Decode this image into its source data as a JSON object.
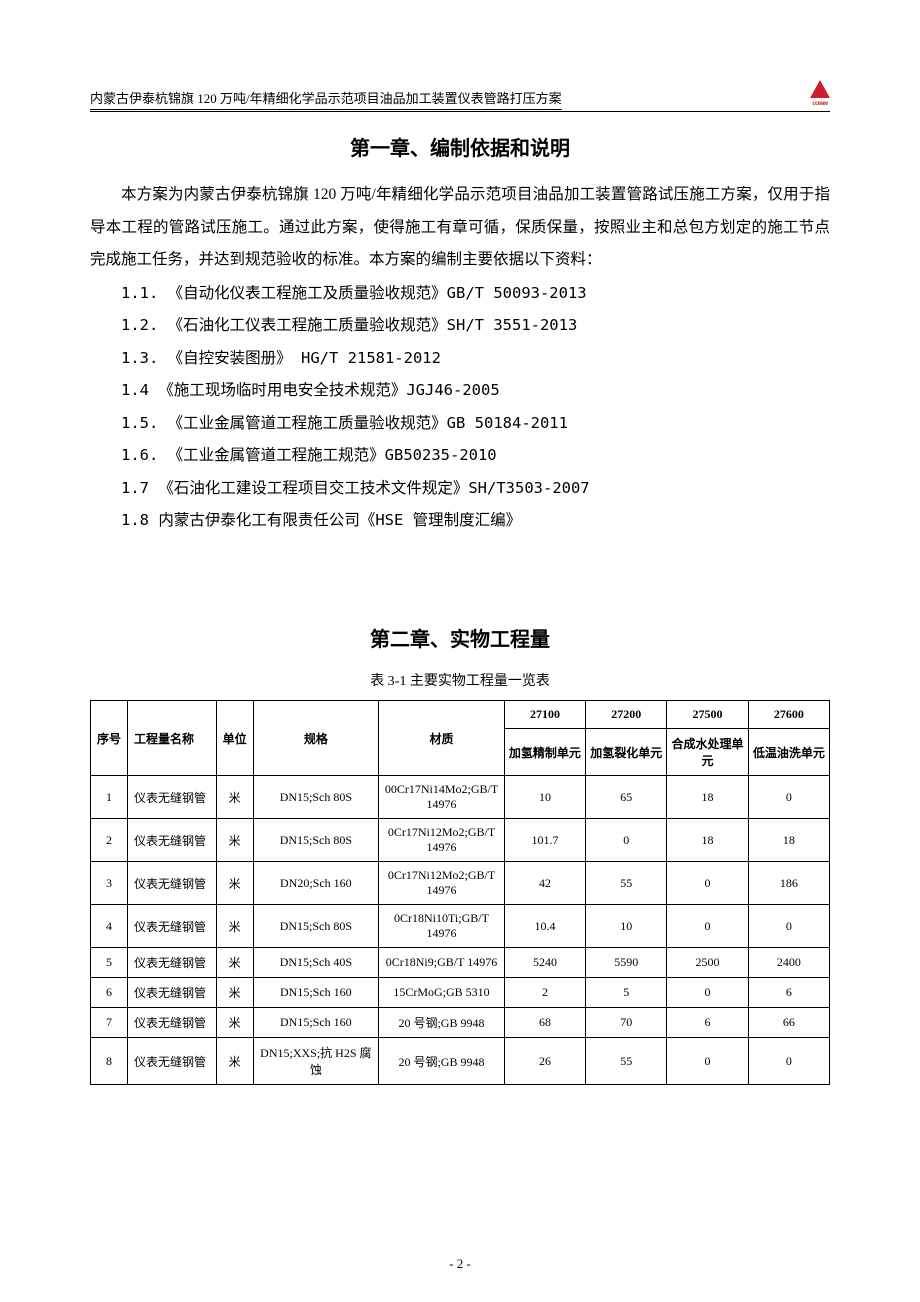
{
  "header": {
    "title": "内蒙古伊泰杭锦旗 120 万吨/年精细化学品示范项目油品加工装置仪表管路打压方案",
    "logo_label": "ccesee"
  },
  "chapter1": {
    "title": "第一章、编制依据和说明",
    "paragraph": "本方案为内蒙古伊泰杭锦旗 120 万吨/年精细化学品示范项目油品加工装置管路试压施工方案，仅用于指导本工程的管路试压施工。通过此方案，使得施工有章可循，保质保量，按照业主和总包方划定的施工节点完成施工任务，并达到规范验收的标准。本方案的编制主要依据以下资料：",
    "items": [
      "1.1. 《自动化仪表工程施工及质量验收规范》GB/T 50093-2013",
      "1.2. 《石油化工仪表工程施工质量验收规范》SH/T 3551-2013",
      "1.3. 《自控安装图册》 HG/T 21581-2012",
      "1.4  《施工现场临时用电安全技术规范》JGJ46-2005",
      "1.5. 《工业金属管道工程施工质量验收规范》GB 50184-2011",
      "1.6. 《工业金属管道工程施工规范》GB50235-2010",
      "1.7 《石油化工建设工程项目交工技术文件规定》SH/T3503-2007",
      "1.8 内蒙古伊泰化工有限责任公司《HSE 管理制度汇编》"
    ]
  },
  "chapter2": {
    "title": "第二章、实物工程量",
    "table_caption": "表 3-1  主要实物工程量一览表",
    "columns": {
      "num": "序号",
      "name": "工程量名称",
      "unit": "单位",
      "spec": "规格",
      "material": "材质",
      "unit_codes": [
        "27100",
        "27200",
        "27500",
        "27600"
      ],
      "unit_names": [
        "加氢精制单元",
        "加氢裂化单元",
        "合成水处理单元",
        "低温油洗单元"
      ]
    },
    "rows": [
      {
        "num": "1",
        "name": "仪表无缝钢管",
        "unit": "米",
        "spec": "DN15;Sch 80S",
        "mat": "00Cr17Ni14Mo2;GB/T 14976",
        "q": [
          "10",
          "65",
          "18",
          "0"
        ]
      },
      {
        "num": "2",
        "name": "仪表无缝钢管",
        "unit": "米",
        "spec": "DN15;Sch 80S",
        "mat": "0Cr17Ni12Mo2;GB/T 14976",
        "q": [
          "101.7",
          "0",
          "18",
          "18"
        ]
      },
      {
        "num": "3",
        "name": "仪表无缝钢管",
        "unit": "米",
        "spec": "DN20;Sch 160",
        "mat": "0Cr17Ni12Mo2;GB/T 14976",
        "q": [
          "42",
          "55",
          "0",
          "186"
        ]
      },
      {
        "num": "4",
        "name": "仪表无缝钢管",
        "unit": "米",
        "spec": "DN15;Sch 80S",
        "mat": "0Cr18Ni10Ti;GB/T 14976",
        "q": [
          "10.4",
          "10",
          "0",
          "0"
        ]
      },
      {
        "num": "5",
        "name": "仪表无缝钢管",
        "unit": "米",
        "spec": "DN15;Sch 40S",
        "mat": "0Cr18Ni9;GB/T 14976",
        "q": [
          "5240",
          "5590",
          "2500",
          "2400"
        ]
      },
      {
        "num": "6",
        "name": "仪表无缝钢管",
        "unit": "米",
        "spec": "DN15;Sch 160",
        "mat": "15CrMoG;GB 5310",
        "q": [
          "2",
          "5",
          "0",
          "6"
        ]
      },
      {
        "num": "7",
        "name": "仪表无缝钢管",
        "unit": "米",
        "spec": "DN15;Sch 160",
        "mat": "20 号钢;GB 9948",
        "q": [
          "68",
          "70",
          "6",
          "66"
        ]
      },
      {
        "num": "8",
        "name": "仪表无缝钢管",
        "unit": "米",
        "spec": "DN15;XXS;抗 H2S 腐蚀",
        "mat": "20 号钢;GB 9948",
        "q": [
          "26",
          "55",
          "0",
          "0"
        ]
      }
    ]
  },
  "footer": {
    "page": "- 2 -"
  }
}
